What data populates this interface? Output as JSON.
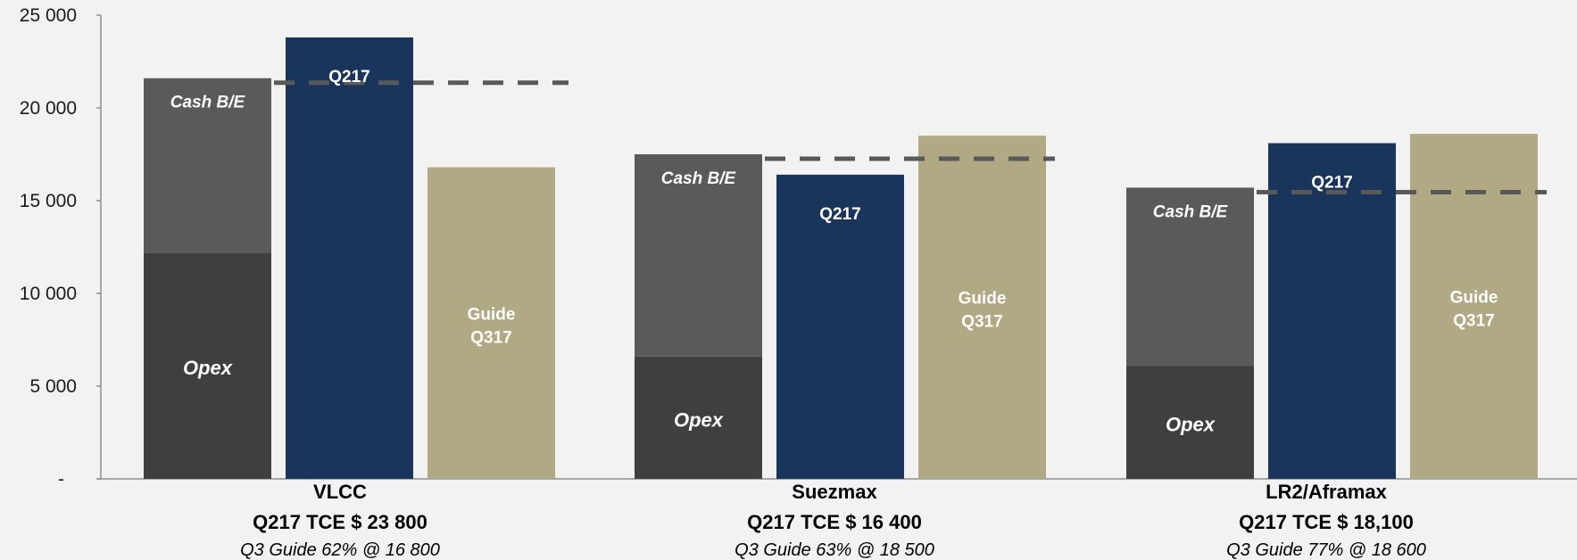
{
  "chart_data": {
    "type": "bar",
    "ylim": [
      0,
      25000
    ],
    "yticks": [
      {
        "value": 0,
        "label": "-"
      },
      {
        "value": 5000,
        "label": "5 000"
      },
      {
        "value": 10000,
        "label": "10 000"
      },
      {
        "value": 15000,
        "label": "15 000"
      },
      {
        "value": 20000,
        "label": "20 000"
      },
      {
        "value": 25000,
        "label": "25 000"
      }
    ],
    "grid": false,
    "colors": {
      "opex": "#3f3f3f",
      "cash_be": "#5a5a5a",
      "q217": "#19355c",
      "guide": "#b1a884",
      "dash": "#595959",
      "axis": "#8c8c8c"
    },
    "groups": [
      {
        "name": "VLCC",
        "tce_label": "Q217 TCE $ 23 800",
        "guide_label": "Q3 Guide 62% @ 16 800",
        "opex": 12200,
        "cash_be": 21600,
        "q217": 23800,
        "guide": 16800
      },
      {
        "name": "Suezmax",
        "tce_label": "Q217 TCE $ 16 400",
        "guide_label": "Q3 Guide 63% @ 18 500",
        "opex": 6600,
        "cash_be": 17500,
        "q217": 16400,
        "guide": 18500
      },
      {
        "name": "LR2/Aframax",
        "tce_label": "Q217 TCE $ 18,100",
        "guide_label": "Q3 Guide 77% @ 18 600",
        "opex": 6100,
        "cash_be": 15700,
        "q217": 18100,
        "guide": 18600
      }
    ],
    "bar_labels": {
      "opex": "Opex",
      "cash_be": "Cash B/E",
      "q217": "Q217",
      "guide_line1": "Guide",
      "guide_line2": "Q317"
    }
  }
}
